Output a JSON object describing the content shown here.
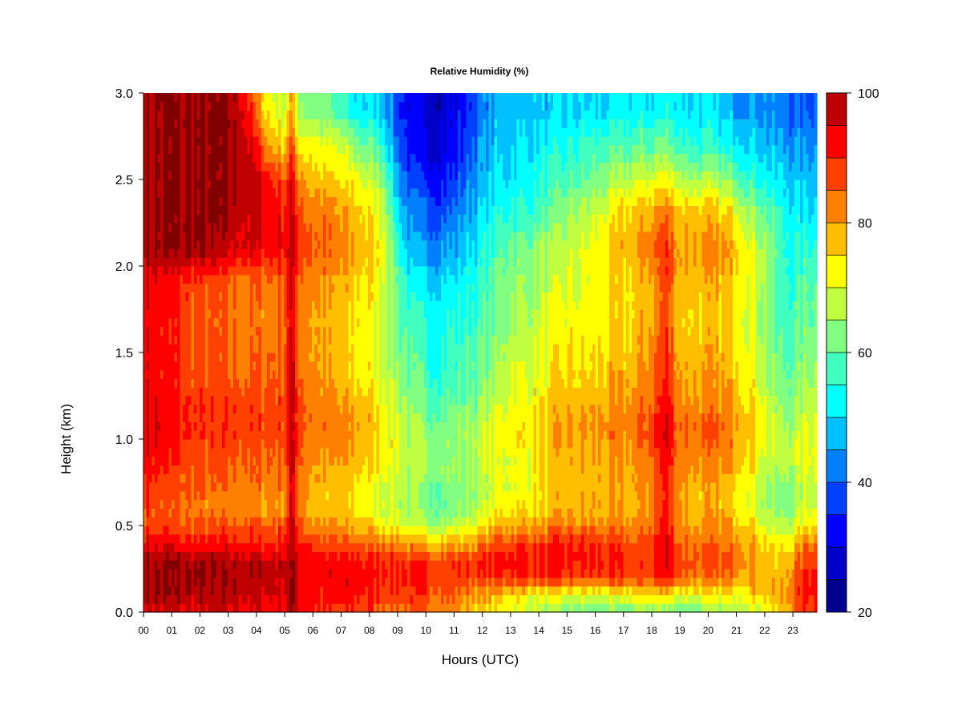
{
  "chart_data": {
    "type": "heatmap",
    "title": "Relative Humidity (%)",
    "xlabel": "Hours (UTC)",
    "ylabel": "Height (km)",
    "x_ticks": [
      "00",
      "01",
      "02",
      "03",
      "04",
      "05",
      "06",
      "07",
      "08",
      "09",
      "10",
      "11",
      "12",
      "13",
      "14",
      "15",
      "16",
      "17",
      "18",
      "19",
      "20",
      "21",
      "22",
      "23"
    ],
    "y_ticks": [
      "0.0",
      "0.5",
      "1.0",
      "1.5",
      "2.0",
      "2.5",
      "3.0"
    ],
    "xlim": [
      0,
      23.85
    ],
    "ylim": [
      0,
      3.0
    ],
    "colorbar": {
      "label": "Relative Humidity (%)",
      "range": [
        20,
        100
      ],
      "tick_labels": [
        "20",
        "40",
        "60",
        "80",
        "100"
      ],
      "levels": [
        20,
        25,
        30,
        35,
        40,
        45,
        50,
        55,
        60,
        65,
        70,
        75,
        80,
        85,
        90,
        95,
        100
      ],
      "colors": [
        "#00008f",
        "#0000c8",
        "#0000ff",
        "#0040ff",
        "#0080ff",
        "#00c0ff",
        "#00ffff",
        "#40ffbf",
        "#80ff80",
        "#bfff40",
        "#ffff00",
        "#ffbf00",
        "#ff8000",
        "#ff4000",
        "#ff0000",
        "#bf0000",
        "#800000"
      ]
    },
    "x_hours": [
      0,
      0.5,
      1,
      1.5,
      2,
      2.5,
      3,
      3.5,
      4,
      4.5,
      5,
      5.2,
      5.5,
      6,
      6.5,
      7,
      7.5,
      8,
      8.5,
      9,
      9.5,
      10,
      10.5,
      11,
      11.5,
      12,
      12.5,
      13,
      13.5,
      14,
      14.5,
      15,
      15.5,
      16,
      16.5,
      17,
      17.5,
      18,
      18.5,
      19,
      19.5,
      20,
      20.5,
      21,
      21.5,
      22,
      22.5,
      23,
      23.5
    ],
    "y_heights_km": [
      0.0,
      0.1,
      0.2,
      0.3,
      0.4,
      0.5,
      0.6,
      0.7,
      0.8,
      0.9,
      1.0,
      1.1,
      1.2,
      1.3,
      1.5,
      1.7,
      1.9,
      2.1,
      2.3,
      2.5,
      2.7,
      2.9
    ],
    "rh_percent": [
      [
        95,
        95,
        95,
        95,
        95,
        95,
        95,
        94,
        93,
        93,
        94,
        99,
        95,
        90,
        88,
        88,
        88,
        88,
        86,
        85,
        85,
        85,
        82,
        80,
        78,
        75,
        72,
        70,
        68,
        66,
        64,
        62,
        60,
        60,
        60,
        60,
        62,
        64,
        62,
        60,
        60,
        62,
        64,
        66,
        68,
        70,
        75,
        82,
        88
      ],
      [
        100,
        100,
        100,
        99,
        98,
        98,
        98,
        97,
        96,
        96,
        96,
        100,
        95,
        92,
        91,
        91,
        91,
        90,
        89,
        88,
        88,
        88,
        86,
        84,
        82,
        80,
        78,
        76,
        74,
        72,
        70,
        70,
        70,
        70,
        70,
        72,
        74,
        76,
        75,
        72,
        72,
        72,
        72,
        74,
        76,
        78,
        78,
        85,
        92
      ],
      [
        100,
        100,
        100,
        100,
        100,
        99,
        99,
        99,
        98,
        98,
        98,
        100,
        96,
        94,
        93,
        93,
        93,
        92,
        92,
        91,
        90,
        90,
        89,
        89,
        88,
        88,
        90,
        90,
        90,
        90,
        90,
        89,
        88,
        88,
        88,
        87,
        86,
        88,
        94,
        86,
        84,
        83,
        83,
        82,
        80,
        78,
        76,
        84,
        92
      ],
      [
        100,
        100,
        100,
        99,
        99,
        99,
        98,
        98,
        97,
        97,
        97,
        100,
        95,
        93,
        92,
        92,
        92,
        91,
        91,
        90,
        89,
        89,
        89,
        89,
        89,
        90,
        92,
        94,
        93,
        92,
        92,
        92,
        92,
        91,
        90,
        89,
        88,
        90,
        96,
        88,
        86,
        86,
        85,
        84,
        82,
        78,
        74,
        80,
        88
      ],
      [
        94,
        93,
        92,
        92,
        91,
        91,
        91,
        91,
        90,
        90,
        91,
        98,
        92,
        88,
        86,
        86,
        85,
        84,
        83,
        82,
        80,
        78,
        78,
        78,
        80,
        82,
        86,
        88,
        88,
        88,
        90,
        90,
        90,
        89,
        88,
        87,
        86,
        89,
        95,
        86,
        84,
        84,
        83,
        82,
        80,
        76,
        72,
        76,
        84
      ],
      [
        88,
        87,
        86,
        86,
        86,
        86,
        86,
        86,
        86,
        86,
        87,
        96,
        88,
        82,
        80,
        80,
        78,
        76,
        74,
        72,
        68,
        66,
        66,
        67,
        70,
        74,
        78,
        80,
        80,
        80,
        82,
        82,
        82,
        82,
        82,
        82,
        82,
        85,
        93,
        82,
        80,
        80,
        80,
        79,
        76,
        70,
        66,
        68,
        74
      ],
      [
        88,
        86,
        84,
        84,
        82,
        82,
        82,
        82,
        80,
        80,
        81,
        95,
        84,
        78,
        76,
        76,
        74,
        72,
        70,
        68,
        64,
        62,
        62,
        62,
        64,
        68,
        72,
        74,
        74,
        75,
        76,
        78,
        78,
        78,
        78,
        78,
        78,
        82,
        92,
        80,
        78,
        78,
        78,
        76,
        72,
        66,
        62,
        64,
        70
      ],
      [
        90,
        88,
        86,
        85,
        84,
        84,
        83,
        83,
        82,
        82,
        82,
        95,
        84,
        78,
        76,
        76,
        74,
        72,
        70,
        68,
        64,
        62,
        62,
        62,
        64,
        66,
        70,
        72,
        72,
        74,
        76,
        78,
        78,
        78,
        78,
        78,
        79,
        83,
        92,
        80,
        78,
        78,
        78,
        76,
        72,
        66,
        62,
        64,
        68
      ],
      [
        92,
        90,
        88,
        86,
        86,
        85,
        85,
        84,
        84,
        84,
        84,
        96,
        86,
        80,
        78,
        78,
        76,
        74,
        72,
        70,
        66,
        64,
        64,
        64,
        66,
        68,
        70,
        72,
        72,
        74,
        76,
        78,
        78,
        78,
        78,
        79,
        80,
        84,
        93,
        82,
        80,
        80,
        79,
        78,
        74,
        68,
        64,
        66,
        70
      ],
      [
        94,
        92,
        90,
        88,
        87,
        86,
        86,
        86,
        85,
        85,
        86,
        96,
        87,
        82,
        80,
        80,
        78,
        76,
        74,
        70,
        66,
        64,
        64,
        64,
        66,
        68,
        70,
        72,
        72,
        74,
        76,
        78,
        78,
        79,
        80,
        80,
        81,
        86,
        94,
        83,
        82,
        82,
        82,
        80,
        76,
        70,
        66,
        68,
        72
      ],
      [
        96,
        94,
        92,
        90,
        88,
        88,
        88,
        88,
        87,
        87,
        88,
        97,
        88,
        84,
        82,
        82,
        80,
        78,
        74,
        70,
        66,
        64,
        64,
        64,
        66,
        68,
        72,
        74,
        74,
        76,
        78,
        80,
        80,
        80,
        82,
        82,
        84,
        88,
        96,
        84,
        84,
        84,
        84,
        82,
        78,
        72,
        66,
        68,
        72
      ],
      [
        96,
        95,
        92,
        90,
        88,
        88,
        88,
        88,
        88,
        88,
        88,
        97,
        88,
        84,
        82,
        82,
        80,
        78,
        74,
        70,
        66,
        62,
        62,
        63,
        64,
        66,
        70,
        74,
        74,
        76,
        78,
        80,
        80,
        80,
        82,
        82,
        84,
        88,
        96,
        84,
        84,
        84,
        84,
        82,
        78,
        72,
        66,
        66,
        70
      ],
      [
        95,
        94,
        92,
        90,
        88,
        88,
        88,
        88,
        88,
        87,
        88,
        97,
        88,
        84,
        82,
        80,
        78,
        76,
        72,
        68,
        62,
        60,
        60,
        60,
        62,
        64,
        68,
        72,
        72,
        74,
        76,
        78,
        78,
        78,
        80,
        80,
        82,
        86,
        94,
        82,
        82,
        82,
        82,
        80,
        76,
        70,
        64,
        64,
        68
      ],
      [
        94,
        92,
        90,
        88,
        87,
        86,
        86,
        86,
        86,
        86,
        87,
        96,
        87,
        82,
        80,
        78,
        76,
        74,
        70,
        66,
        60,
        58,
        57,
        58,
        60,
        62,
        66,
        70,
        70,
        72,
        74,
        76,
        76,
        76,
        78,
        78,
        80,
        84,
        92,
        80,
        80,
        80,
        80,
        78,
        74,
        68,
        62,
        62,
        66
      ],
      [
        93,
        92,
        90,
        88,
        86,
        85,
        85,
        84,
        84,
        84,
        86,
        96,
        86,
        80,
        78,
        76,
        74,
        72,
        68,
        64,
        58,
        56,
        55,
        56,
        58,
        60,
        64,
        68,
        68,
        70,
        72,
        74,
        74,
        74,
        76,
        76,
        78,
        82,
        90,
        78,
        78,
        78,
        78,
        76,
        72,
        66,
        60,
        60,
        64
      ],
      [
        93,
        92,
        90,
        88,
        86,
        84,
        84,
        83,
        83,
        83,
        85,
        95,
        85,
        80,
        78,
        76,
        74,
        72,
        68,
        62,
        56,
        54,
        54,
        55,
        56,
        58,
        62,
        66,
        66,
        68,
        70,
        72,
        72,
        72,
        74,
        74,
        76,
        80,
        88,
        76,
        76,
        76,
        76,
        74,
        70,
        64,
        58,
        58,
        62
      ],
      [
        94,
        93,
        91,
        89,
        87,
        86,
        84,
        84,
        84,
        84,
        86,
        96,
        86,
        82,
        80,
        78,
        76,
        74,
        70,
        60,
        52,
        50,
        50,
        51,
        54,
        56,
        60,
        64,
        64,
        66,
        68,
        70,
        70,
        72,
        74,
        74,
        76,
        80,
        88,
        78,
        78,
        78,
        78,
        76,
        72,
        66,
        58,
        56,
        60
      ],
      [
        100,
        100,
        100,
        100,
        100,
        98,
        96,
        95,
        94,
        93,
        93,
        98,
        90,
        86,
        84,
        82,
        80,
        76,
        72,
        56,
        46,
        44,
        44,
        46,
        50,
        54,
        58,
        62,
        62,
        64,
        66,
        68,
        70,
        72,
        76,
        78,
        80,
        84,
        90,
        80,
        80,
        80,
        80,
        78,
        72,
        66,
        58,
        54,
        56
      ],
      [
        100,
        100,
        100,
        100,
        100,
        100,
        99,
        98,
        96,
        94,
        92,
        97,
        88,
        84,
        82,
        80,
        78,
        74,
        70,
        52,
        42,
        40,
        40,
        42,
        46,
        50,
        54,
        56,
        56,
        58,
        60,
        64,
        66,
        68,
        72,
        76,
        78,
        80,
        84,
        78,
        78,
        78,
        76,
        72,
        66,
        60,
        56,
        52,
        52
      ],
      [
        100,
        100,
        100,
        100,
        100,
        100,
        100,
        100,
        96,
        90,
        86,
        94,
        82,
        78,
        76,
        74,
        72,
        68,
        64,
        46,
        36,
        34,
        34,
        36,
        42,
        46,
        50,
        52,
        52,
        54,
        56,
        58,
        60,
        62,
        64,
        66,
        68,
        70,
        72,
        68,
        66,
        66,
        64,
        62,
        58,
        54,
        50,
        48,
        48
      ],
      [
        100,
        100,
        100,
        100,
        100,
        100,
        100,
        100,
        90,
        80,
        76,
        88,
        74,
        72,
        70,
        68,
        64,
        60,
        56,
        40,
        32,
        30,
        30,
        32,
        38,
        44,
        48,
        50,
        50,
        52,
        52,
        54,
        56,
        56,
        58,
        58,
        60,
        60,
        62,
        58,
        56,
        56,
        54,
        52,
        50,
        48,
        46,
        44,
        44
      ],
      [
        100,
        100,
        100,
        100,
        100,
        100,
        100,
        96,
        82,
        72,
        68,
        80,
        66,
        64,
        60,
        56,
        52,
        50,
        48,
        38,
        30,
        28,
        28,
        30,
        36,
        42,
        46,
        48,
        48,
        48,
        48,
        50,
        50,
        50,
        50,
        52,
        52,
        52,
        54,
        52,
        50,
        50,
        48,
        46,
        46,
        44,
        42,
        40,
        40
      ]
    ]
  }
}
